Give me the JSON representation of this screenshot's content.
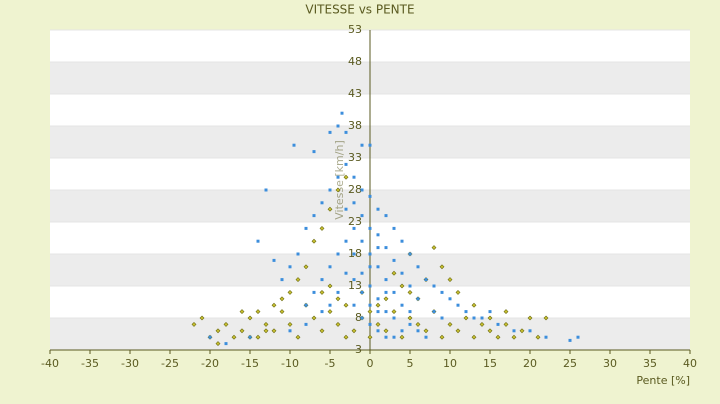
{
  "chart_data": {
    "type": "scatter",
    "title": "VITESSE vs PENTE",
    "x_label": "Pente [%]",
    "y_label": "Vitesse [km/h]",
    "xlim": [
      -40,
      40
    ],
    "xticks": [
      -40,
      -35,
      -30,
      -25,
      -20,
      -15,
      -10,
      -5,
      0,
      5,
      10,
      15,
      20,
      25,
      30,
      35,
      40
    ],
    "ylim": [
      3,
      53
    ],
    "yticks": [
      3,
      8,
      13,
      18,
      23,
      28,
      33,
      38,
      43,
      48,
      53
    ],
    "series": [
      {
        "color": "#c8c030",
        "x": [
          -22,
          -21,
          -20,
          -19,
          -18,
          -17,
          -16,
          -15,
          -14,
          -13,
          -12,
          -11,
          -10,
          -9,
          -8,
          -7,
          -6,
          -5,
          -4,
          -3,
          -2,
          -1,
          0,
          1,
          2,
          3,
          4,
          5,
          6,
          7,
          8,
          9,
          10,
          11,
          12,
          13,
          14,
          15,
          16,
          17,
          18,
          19,
          20,
          22,
          -9,
          -8,
          -7,
          -6,
          -5,
          -4,
          -3,
          -10,
          -12,
          -11,
          -6,
          -5,
          -4,
          -3,
          4,
          5,
          6,
          7,
          8,
          9,
          10,
          11,
          5,
          3,
          2,
          1,
          -14,
          -15,
          -1,
          0,
          13,
          15,
          17,
          -13,
          -16,
          -19,
          21
        ],
        "values": [
          7,
          8,
          5,
          6,
          7,
          5,
          6,
          8,
          5,
          7,
          6,
          9,
          7,
          5,
          10,
          8,
          6,
          9,
          7,
          5,
          6,
          8,
          5,
          7,
          6,
          9,
          5,
          8,
          7,
          6,
          9,
          5,
          7,
          6,
          8,
          5,
          7,
          6,
          5,
          7,
          5,
          6,
          8,
          8,
          14,
          16,
          20,
          22,
          25,
          28,
          30,
          12,
          10,
          11,
          12,
          13,
          11,
          10,
          13,
          12,
          11,
          14,
          19,
          16,
          14,
          12,
          18,
          15,
          11,
          10,
          9,
          5,
          12,
          9,
          10,
          8,
          9,
          6,
          9,
          4,
          5
        ]
      },
      {
        "color": "#3c8edc",
        "x": [
          -5,
          -4,
          -3,
          -3.5,
          -9.5,
          -7,
          -1,
          0,
          -13,
          -14,
          -12,
          -11,
          -10,
          -9,
          -8,
          -7,
          -6,
          -5,
          -4,
          -3,
          -2,
          -1,
          0,
          1,
          2,
          3,
          4,
          5,
          6,
          7,
          8,
          9,
          10,
          -3,
          -2,
          -1,
          0,
          1,
          2,
          3,
          4,
          5,
          -2,
          -1,
          0,
          1,
          2,
          3,
          -3,
          -4,
          -5,
          -6,
          -2,
          -1,
          0,
          1,
          2,
          3,
          4,
          5,
          6,
          7,
          -1,
          0,
          1,
          2,
          3,
          4,
          5,
          6,
          -2,
          -1,
          0,
          1,
          -3,
          -4,
          -5,
          -6,
          -7,
          -8,
          12,
          14,
          16,
          18,
          20,
          22,
          25,
          26,
          -20,
          -18,
          -15,
          -10,
          -8,
          11,
          13,
          15,
          9,
          8,
          -2,
          0,
          2,
          1
        ],
        "values": [
          37,
          38,
          37,
          40,
          35,
          34,
          35,
          35,
          28,
          20,
          17,
          14,
          16,
          18,
          22,
          24,
          26,
          28,
          30,
          32,
          30,
          28,
          27,
          25,
          24,
          22,
          20,
          18,
          16,
          14,
          13,
          12,
          11,
          25,
          22,
          20,
          18,
          16,
          14,
          12,
          10,
          9,
          18,
          15,
          13,
          11,
          9,
          8,
          15,
          12,
          10,
          9,
          10,
          8,
          7,
          6,
          5,
          5,
          6,
          7,
          6,
          5,
          24,
          22,
          21,
          19,
          17,
          15,
          13,
          11,
          26,
          12,
          10,
          9,
          20,
          18,
          16,
          14,
          12,
          10,
          9,
          8,
          7,
          6,
          6,
          5,
          4.5,
          5,
          5,
          4,
          5,
          6,
          7,
          10,
          8,
          9,
          8,
          9,
          14,
          16,
          12,
          19
        ]
      }
    ]
  }
}
